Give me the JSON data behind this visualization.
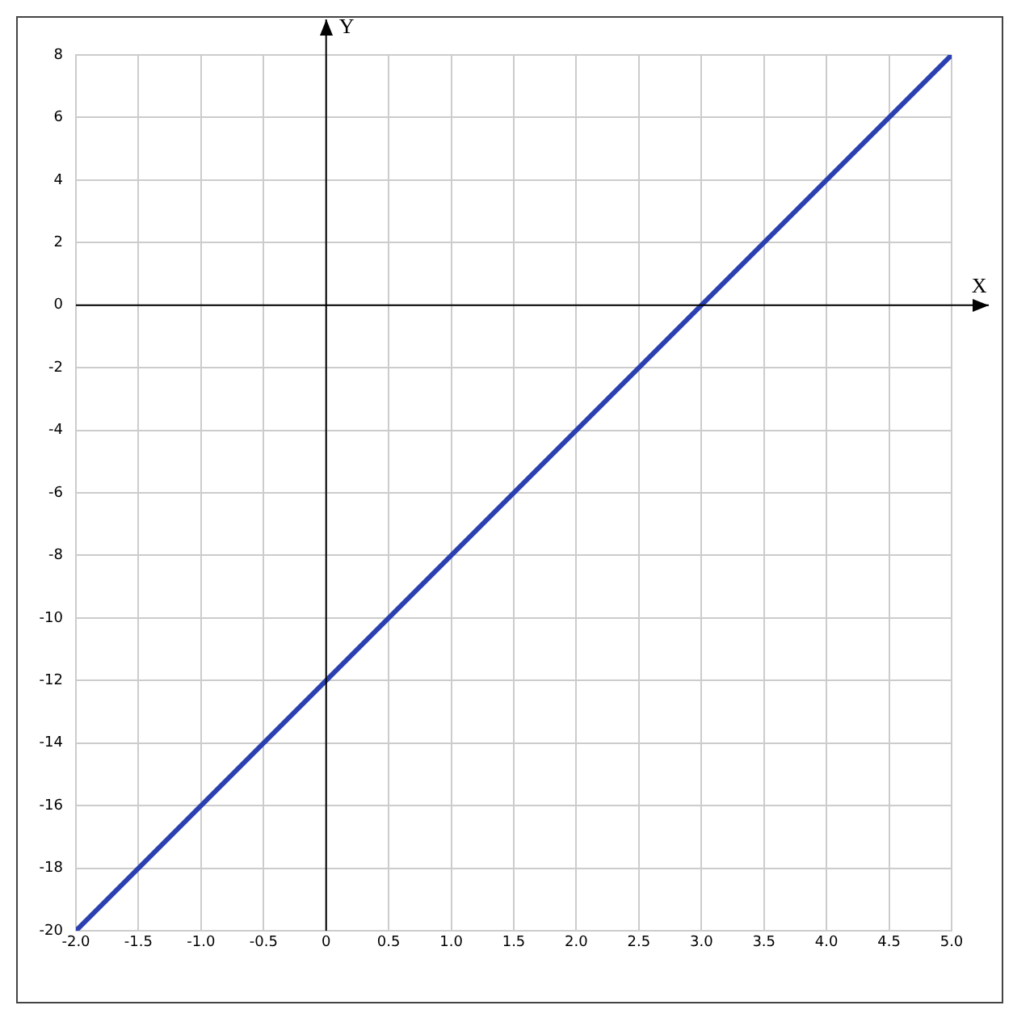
{
  "chart_data": {
    "type": "line",
    "xlabel": "X",
    "ylabel": "Y",
    "x": [
      -2,
      5
    ],
    "series": [
      {
        "color": "#2b40b0",
        "values": [
          -20,
          8
        ]
      }
    ],
    "xlim": [
      -2,
      5
    ],
    "ylim": [
      -20,
      8
    ],
    "xticks": [
      {
        "value": -2,
        "label": "-2.0"
      },
      -1.5,
      {
        "value": -1,
        "label": "-1.0"
      },
      -0.5,
      0,
      0.5,
      {
        "value": 1,
        "label": "1.0"
      },
      1.5,
      {
        "value": 2,
        "label": "2.0"
      },
      2.5,
      {
        "value": 3,
        "label": "3.0"
      },
      3.5,
      {
        "value": 4,
        "label": "4.0"
      },
      4.5,
      {
        "value": 5,
        "label": "5.0"
      }
    ],
    "yticks": [
      -20,
      -18,
      -16,
      -14,
      -12,
      -10,
      -8,
      -6,
      -4,
      -2,
      0,
      2,
      4,
      6,
      8
    ],
    "grid": true,
    "legend": false,
    "marker": "none",
    "line_style": "solid"
  }
}
